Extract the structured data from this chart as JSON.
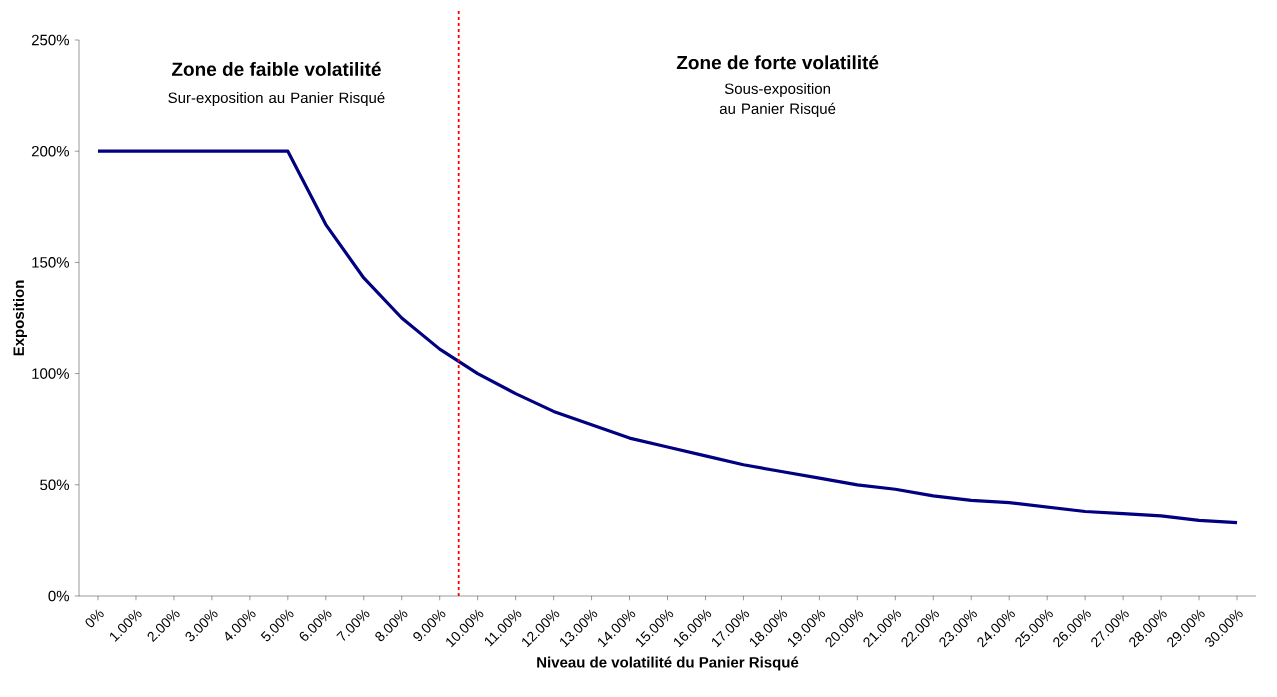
{
  "chart_data": {
    "type": "line",
    "xlabel": "Niveau de volatilité du Panier Risqué",
    "ylabel": "Exposition",
    "x": [
      0,
      1,
      2,
      3,
      4,
      5,
      6,
      7,
      8,
      9,
      10,
      11,
      12,
      13,
      14,
      15,
      16,
      17,
      18,
      19,
      20,
      21,
      22,
      23,
      24,
      25,
      26,
      27,
      28,
      29,
      30
    ],
    "values": [
      200,
      200,
      200,
      200,
      200,
      200,
      167,
      143,
      125,
      111,
      100,
      91,
      83,
      77,
      71,
      67,
      63,
      59,
      56,
      53,
      50,
      48,
      45,
      43,
      42,
      40,
      38,
      37,
      36,
      34,
      33
    ],
    "color": "#000080",
    "line_style": "solid",
    "grid": false,
    "xlim": [
      -0.5,
      30.5
    ],
    "ylim": [
      0,
      250
    ],
    "xticks": [
      {
        "value": 0,
        "label": "0%"
      },
      {
        "value": 1,
        "label": "1.00%"
      },
      {
        "value": 2,
        "label": "2.00%"
      },
      {
        "value": 3,
        "label": "3.00%"
      },
      {
        "value": 4,
        "label": "4.00%"
      },
      {
        "value": 5,
        "label": "5.00%"
      },
      {
        "value": 6,
        "label": "6.00%"
      },
      {
        "value": 7,
        "label": "7.00%"
      },
      {
        "value": 8,
        "label": "8.00%"
      },
      {
        "value": 9,
        "label": "9.00%"
      },
      {
        "value": 10,
        "label": "10.00%"
      },
      {
        "value": 11,
        "label": "11.00%"
      },
      {
        "value": 12,
        "label": "12.00%"
      },
      {
        "value": 13,
        "label": "13.00%"
      },
      {
        "value": 14,
        "label": "14.00%"
      },
      {
        "value": 15,
        "label": "15.00%"
      },
      {
        "value": 16,
        "label": "16.00%"
      },
      {
        "value": 17,
        "label": "17.00%"
      },
      {
        "value": 18,
        "label": "18.00%"
      },
      {
        "value": 19,
        "label": "19.00%"
      },
      {
        "value": 20,
        "label": "20.00%"
      },
      {
        "value": 21,
        "label": "21.00%"
      },
      {
        "value": 22,
        "label": "22.00%"
      },
      {
        "value": 23,
        "label": "23.00%"
      },
      {
        "value": 24,
        "label": "24.00%"
      },
      {
        "value": 25,
        "label": "25.00%"
      },
      {
        "value": 26,
        "label": "26.00%"
      },
      {
        "value": 27,
        "label": "27.00%"
      },
      {
        "value": 28,
        "label": "28.00%"
      },
      {
        "value": 29,
        "label": "29.00%"
      },
      {
        "value": 30,
        "label": "30.00%"
      }
    ],
    "yticks": [
      {
        "value": 0,
        "label": "0%"
      },
      {
        "value": 50,
        "label": "50%"
      },
      {
        "value": 100,
        "label": "100%"
      },
      {
        "value": 150,
        "label": "150%"
      },
      {
        "value": 200,
        "label": "200%"
      },
      {
        "value": 250,
        "label": "250%"
      }
    ],
    "ref_lines": [
      {
        "axis": "x",
        "value": 9.5,
        "color": "#ff0000",
        "line_style": "dashed"
      }
    ],
    "annotations": [
      "Zone de faible volatilité",
      "Sur-exposition au Panier Risqué",
      "Zone de forte volatilité",
      "Sous-exposition au Panier Risqué"
    ]
  }
}
